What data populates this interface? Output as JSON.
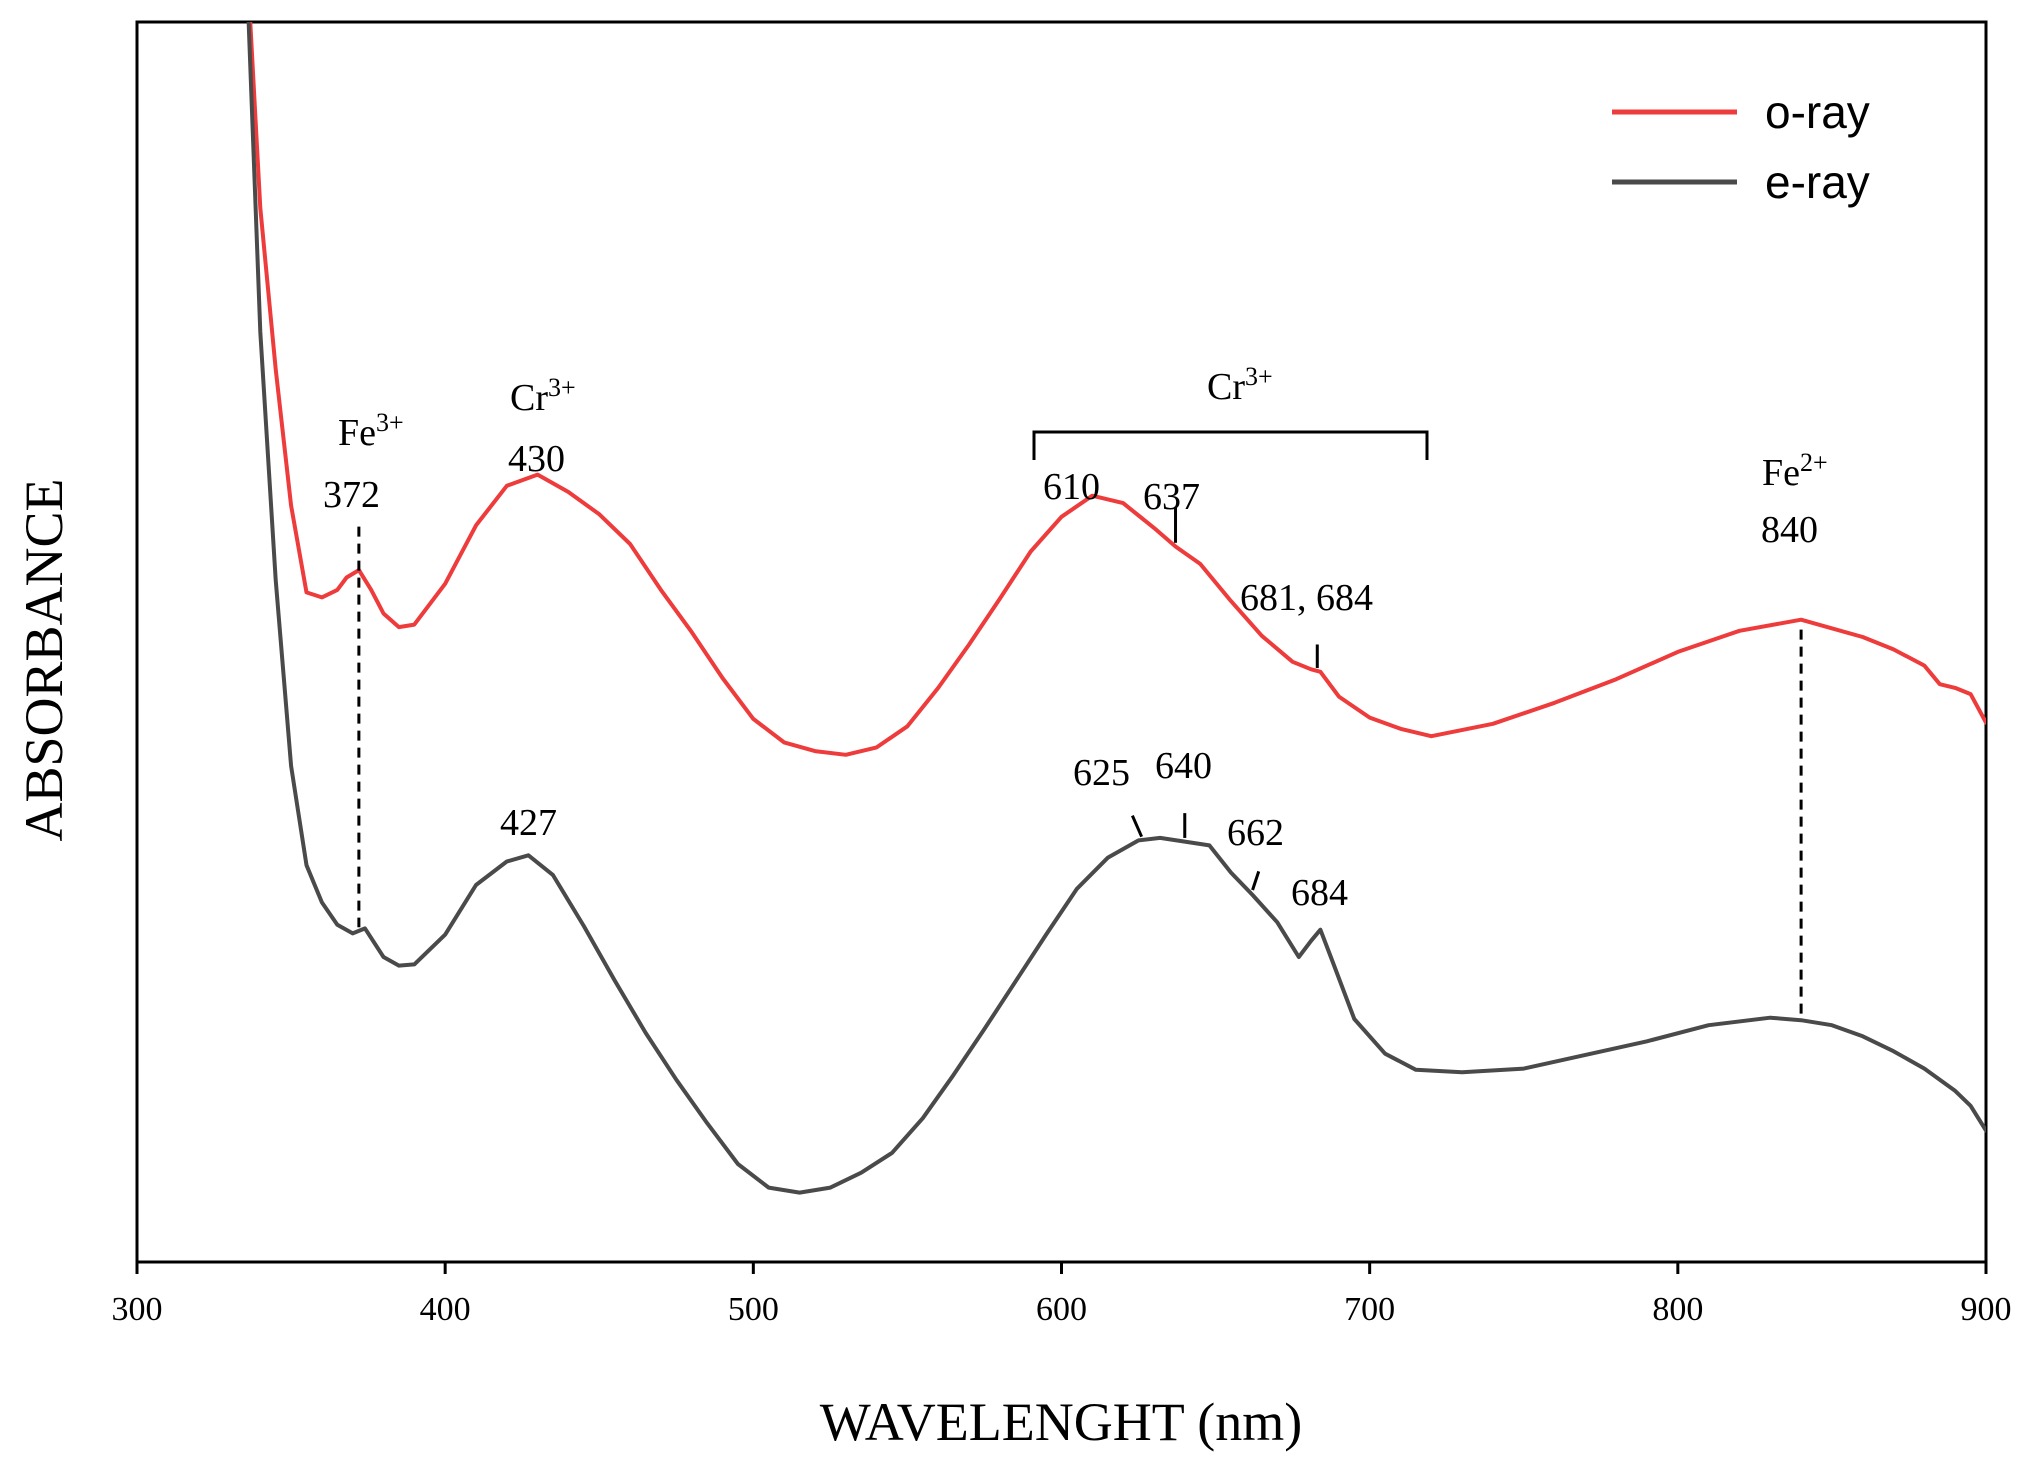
{
  "chart_data": {
    "type": "line",
    "title": "",
    "xlabel": "WAVELENGHT (nm)",
    "ylabel": "ABSORBANCE",
    "xlim": [
      300,
      900
    ],
    "ylim": [
      0,
      100
    ],
    "y_ticks_shown": false,
    "x_ticks": [
      300,
      400,
      500,
      600,
      700,
      800,
      900
    ],
    "legend_position": "top-right",
    "colors": {
      "o_ray": "#ee3b3b",
      "e_ray": "#4a4a4a",
      "axis": "#000000"
    },
    "series": [
      {
        "name": "o-ray",
        "x": [
          335,
          340,
          345,
          350,
          355,
          360,
          365,
          368,
          372,
          376,
          380,
          385,
          390,
          400,
          410,
          420,
          430,
          440,
          450,
          460,
          470,
          480,
          490,
          500,
          510,
          520,
          530,
          540,
          550,
          560,
          570,
          580,
          590,
          600,
          610,
          620,
          630,
          637,
          645,
          655,
          665,
          675,
          681,
          684,
          690,
          700,
          710,
          720,
          740,
          760,
          780,
          800,
          820,
          840,
          860,
          870,
          880,
          885,
          890,
          895,
          900
        ],
        "y": [
          108,
          85,
          72,
          61,
          54,
          53.6,
          54.2,
          55.2,
          55.8,
          54.2,
          52.3,
          51.2,
          51.4,
          54.7,
          59.4,
          62.6,
          63.5,
          62.1,
          60.3,
          57.9,
          54.2,
          50.8,
          47.1,
          43.8,
          41.9,
          41.2,
          40.9,
          41.5,
          43.2,
          46.3,
          49.8,
          53.5,
          57.3,
          60.1,
          61.8,
          61.2,
          59.2,
          57.7,
          56.3,
          53.3,
          50.5,
          48.4,
          47.8,
          47.6,
          45.6,
          43.9,
          43.0,
          42.4,
          43.4,
          45.1,
          47.0,
          49.2,
          50.9,
          51.8,
          50.4,
          49.4,
          48.1,
          46.6,
          46.3,
          45.8,
          43.5
        ]
      },
      {
        "name": "e-ray",
        "x": [
          335,
          340,
          345,
          350,
          355,
          360,
          365,
          370,
          374,
          380,
          385,
          390,
          400,
          410,
          420,
          427,
          435,
          445,
          455,
          465,
          475,
          485,
          495,
          505,
          515,
          525,
          535,
          545,
          555,
          565,
          575,
          585,
          595,
          605,
          615,
          625,
          632,
          640,
          648,
          655,
          662,
          670,
          677,
          681,
          684,
          688,
          695,
          705,
          715,
          730,
          750,
          770,
          790,
          810,
          830,
          840,
          850,
          860,
          870,
          880,
          890,
          895,
          900
        ],
        "y": [
          108,
          75,
          55,
          40,
          32,
          29,
          27.2,
          26.5,
          26.9,
          24.6,
          23.9,
          24.0,
          26.4,
          30.4,
          32.3,
          32.8,
          31.2,
          27.1,
          22.7,
          18.5,
          14.7,
          11.2,
          7.9,
          6.0,
          5.6,
          6.0,
          7.2,
          8.8,
          11.6,
          15.1,
          18.8,
          22.6,
          26.4,
          30.1,
          32.6,
          34.0,
          34.2,
          33.9,
          33.6,
          31.4,
          29.6,
          27.4,
          24.6,
          25.9,
          26.8,
          24.2,
          19.6,
          16.8,
          15.5,
          15.3,
          15.6,
          16.7,
          17.8,
          19.1,
          19.7,
          19.5,
          19.1,
          18.2,
          17.0,
          15.6,
          13.8,
          12.6,
          10.6
        ]
      }
    ],
    "legend": [
      {
        "label": "o-ray",
        "series": "o-ray"
      },
      {
        "label": "e-ray",
        "series": "e-ray"
      }
    ],
    "annotations": [
      {
        "ion": "Fe",
        "charge": "3+",
        "value": "372"
      },
      {
        "ion": "Cr",
        "charge": "3+",
        "value": "430"
      },
      {
        "ion": "Cr",
        "charge": "3+",
        "group_values": [
          "610",
          "637",
          "681, 684"
        ]
      },
      {
        "ion": "Fe",
        "charge": "2+",
        "value": "840"
      },
      {
        "value": "427"
      },
      {
        "value": "625"
      },
      {
        "value": "640"
      },
      {
        "value": "662"
      },
      {
        "value": "684"
      }
    ],
    "labels": {
      "fe3_ion": "Fe",
      "fe3_charge": "3+",
      "fe3_value": "372",
      "cr3_ion": "Cr",
      "cr3_charge": "3+",
      "cr3_value": "430",
      "cr3_group_ion": "Cr",
      "cr3_group_charge": "3+",
      "o_610": "610",
      "o_637": "637",
      "o_681_684": "681, 684",
      "fe2_ion": "Fe",
      "fe2_charge": "2+",
      "fe2_value": "840",
      "e_427": "427",
      "e_625": "625",
      "e_640": "640",
      "e_662": "662",
      "e_684": "684"
    }
  }
}
